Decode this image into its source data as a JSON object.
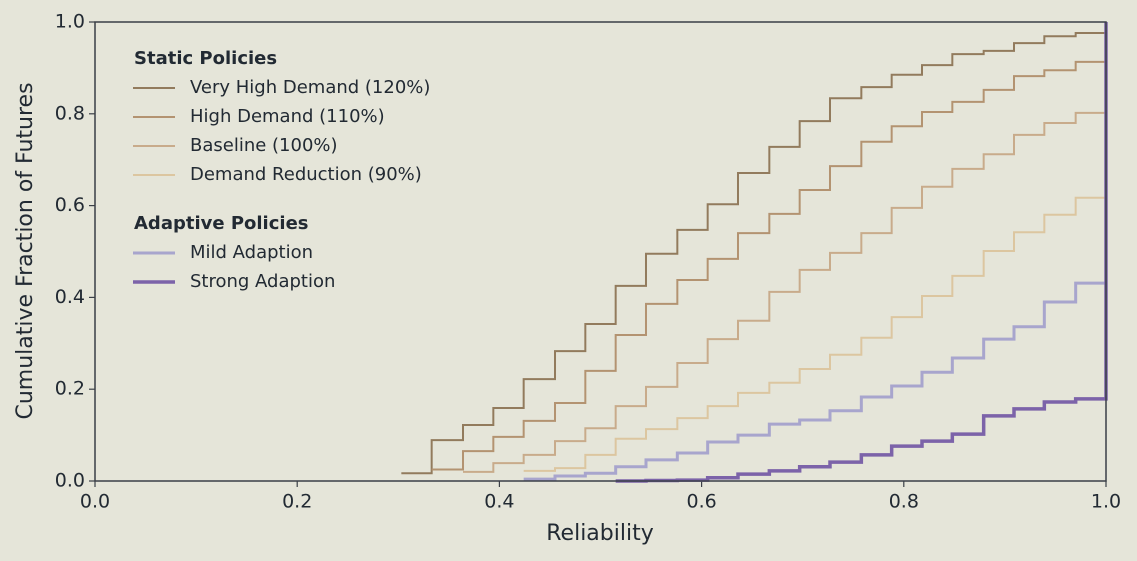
{
  "chart_data": {
    "type": "line",
    "step": "post",
    "xlabel": "Reliability",
    "ylabel": "Cumulative Fraction of Futures",
    "xlim": [
      0,
      1
    ],
    "ylim": [
      0,
      1
    ],
    "xticks": [
      {
        "value": 0,
        "label": "0.0"
      },
      {
        "value": 0.2,
        "label": "0.2"
      },
      {
        "value": 0.4,
        "label": "0.4"
      },
      {
        "value": 0.6,
        "label": "0.6"
      },
      {
        "value": 0.8,
        "label": "0.8"
      },
      {
        "value": 1,
        "label": "1.0"
      }
    ],
    "yticks": [
      {
        "value": 0,
        "label": "0.0"
      },
      {
        "value": 0.2,
        "label": "0.2"
      },
      {
        "value": 0.4,
        "label": "0.4"
      },
      {
        "value": 0.6,
        "label": "0.6"
      },
      {
        "value": 0.8,
        "label": "0.8"
      },
      {
        "value": 1,
        "label": "1.0"
      }
    ],
    "legend": "upper left",
    "x": [
      0.303,
      0.333,
      0.364,
      0.394,
      0.424,
      0.455,
      0.485,
      0.515,
      0.545,
      0.576,
      0.606,
      0.636,
      0.667,
      0.697,
      0.727,
      0.758,
      0.788,
      0.818,
      0.848,
      0.879,
      0.909,
      0.939,
      0.97,
      1.0
    ],
    "legend_groups": [
      {
        "title": "Static Policies",
        "series": [
          {
            "name": "Very High Demand (120%)",
            "color": "#927b5d",
            "width": 2,
            "values": [
              0.017,
              0.089,
              0.122,
              0.159,
              0.222,
              0.283,
              0.342,
              0.425,
              0.495,
              0.547,
              0.603,
              0.671,
              0.728,
              0.784,
              0.834,
              0.858,
              0.885,
              0.906,
              0.93,
              0.937,
              0.954,
              0.969,
              0.976,
              1.0
            ]
          },
          {
            "name": "High Demand (110%)",
            "color": "#b39371",
            "width": 2,
            "values": [
              null,
              0.025,
              0.065,
              0.096,
              0.131,
              0.17,
              0.24,
              0.318,
              0.386,
              0.438,
              0.484,
              0.54,
              0.582,
              0.634,
              0.686,
              0.739,
              0.773,
              0.804,
              0.826,
              0.852,
              0.882,
              0.895,
              0.913,
              1.0
            ]
          },
          {
            "name": "Baseline (100%)",
            "color": "#c8ab8b",
            "width": 2,
            "values": [
              null,
              null,
              0.02,
              0.039,
              0.057,
              0.087,
              0.115,
              0.163,
              0.205,
              0.257,
              0.309,
              0.349,
              0.412,
              0.46,
              0.497,
              0.54,
              0.595,
              0.641,
              0.68,
              0.712,
              0.754,
              0.78,
              0.802,
              1.0
            ]
          },
          {
            "name": "Demand Reduction (90%)",
            "color": "#dcc6a0",
            "width": 2,
            "values": [
              null,
              null,
              null,
              null,
              0.022,
              0.028,
              0.057,
              0.092,
              0.113,
              0.137,
              0.163,
              0.192,
              0.214,
              0.244,
              0.275,
              0.312,
              0.357,
              0.403,
              0.447,
              0.501,
              0.542,
              0.58,
              0.617,
              1.0
            ]
          }
        ]
      },
      {
        "title": "Adaptive Policies",
        "series": [
          {
            "name": "Mild Adaption",
            "color": "#a8a5cd",
            "width": 3,
            "values": [
              null,
              null,
              null,
              null,
              0.004,
              0.011,
              0.017,
              0.031,
              0.046,
              0.061,
              0.085,
              0.1,
              0.124,
              0.133,
              0.153,
              0.183,
              0.207,
              0.237,
              0.268,
              0.309,
              0.336,
              0.39,
              0.431,
              1.0
            ]
          },
          {
            "name": "Strong Adaption",
            "color": "#7c63a9",
            "width": 3.5,
            "values": [
              null,
              null,
              null,
              null,
              null,
              null,
              null,
              0.0,
              0.001,
              0.002,
              0.007,
              0.015,
              0.022,
              0.031,
              0.041,
              0.057,
              0.076,
              0.087,
              0.102,
              0.142,
              0.157,
              0.172,
              0.179,
              1.0
            ]
          }
        ]
      }
    ]
  }
}
